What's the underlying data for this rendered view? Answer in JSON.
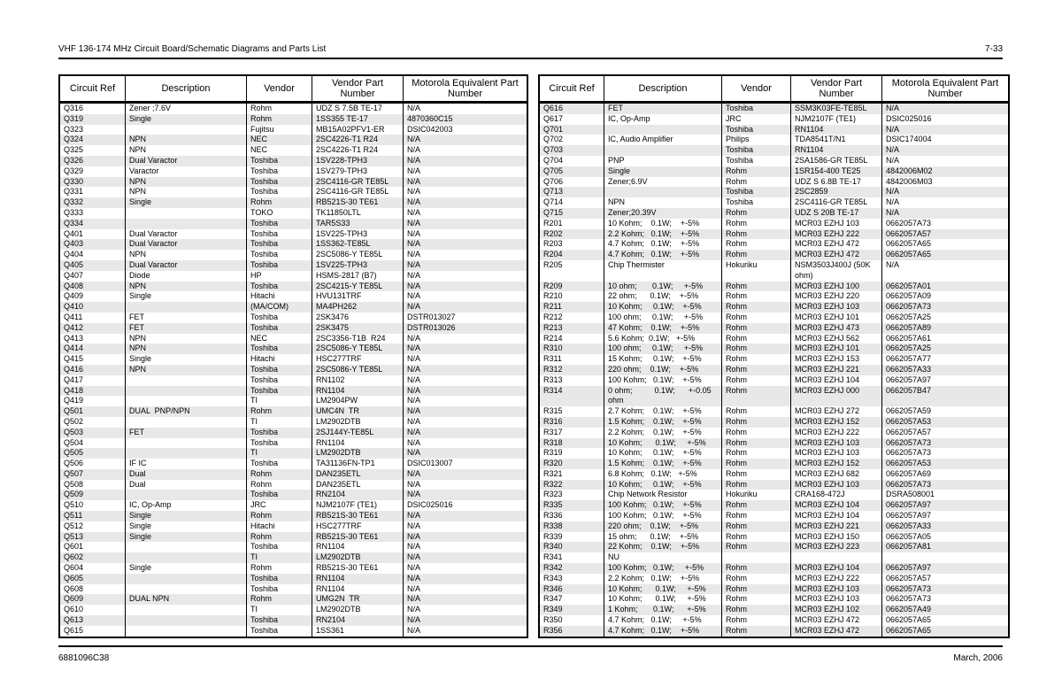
{
  "page": {
    "header_title": "VHF 136-174 MHz Circuit Board/Schematic Diagrams and Parts List",
    "header_page_number": "7-33",
    "footer_left": "6881096C38",
    "footer_right": "March, 2006"
  },
  "colors": {
    "stripe": "#e8e8e8",
    "border": "#000000",
    "text": "#000000"
  },
  "table_headers": [
    "Circuit Ref",
    "Description",
    "Vendor",
    "Vendor Part Number",
    "Motorola Equivalent Part Number"
  ],
  "left_table": {
    "shade_phase": 1,
    "tall_rows": [],
    "rows": [
      [
        "Q316",
        "Zener ;7.6V",
        "Rohm",
        "UDZ S 7.5B TE-17",
        "N/A"
      ],
      [
        "Q319",
        "Single",
        "Rohm",
        "1SS355 TE-17",
        "4870360C15"
      ],
      [
        "Q323",
        "",
        "Fujitsu",
        "MB15A02PFV1-ER",
        "DSIC042003"
      ],
      [
        "Q324",
        "NPN",
        "NEC",
        "2SC4226-T1 R24",
        "N/A"
      ],
      [
        "Q325",
        "NPN",
        "NEC",
        "2SC4226-T1 R24",
        "N/A"
      ],
      [
        "Q326",
        "Dual Varactor",
        "Toshiba",
        "1SV228-TPH3",
        "N/A"
      ],
      [
        "Q329",
        "Varactor",
        "Toshiba",
        "1SV279-TPH3",
        "N/A"
      ],
      [
        "Q330",
        "NPN",
        "Toshiba",
        "2SC4116-GR TE85L",
        "N/A"
      ],
      [
        "Q331",
        "NPN",
        "Toshiba",
        "2SC4116-GR TE85L",
        "N/A"
      ],
      [
        "Q332",
        "Single",
        "Rohm",
        "RB521S-30 TE61",
        "N/A"
      ],
      [
        "Q333",
        "",
        "TOKO",
        "TK11850LTL",
        "N/A"
      ],
      [
        "Q334",
        "",
        "Toshiba",
        "TAR5S33",
        "N/A"
      ],
      [
        "Q401",
        "Dual Varactor",
        "Toshiba",
        "1SV225-TPH3",
        "N/A"
      ],
      [
        "Q403",
        "Dual Varactor",
        "Toshiba",
        "1SS362-TE85L",
        "N/A"
      ],
      [
        "Q404",
        "NPN",
        "Toshiba",
        "2SC5086-Y TE85L",
        "N/A"
      ],
      [
        "Q405",
        "Dual Varactor",
        "Toshiba",
        "1SV225-TPH3",
        "N/A"
      ],
      [
        "Q407",
        "Diode",
        "HP",
        "HSMS-2817 (B7)",
        "N/A"
      ],
      [
        "Q408",
        "NPN",
        "Toshiba",
        "2SC4215-Y TE85L",
        "N/A"
      ],
      [
        "Q409",
        "Single",
        "Hitachi",
        "HVU131TRF",
        "N/A"
      ],
      [
        "Q410",
        "",
        "(MA/COM)",
        "MA4PH262",
        "N/A"
      ],
      [
        "Q411",
        "FET",
        "Toshiba",
        "2SK3476",
        "DSTR013027"
      ],
      [
        "Q412",
        "FET",
        "Toshiba",
        "2SK3475",
        "DSTR013026"
      ],
      [
        "Q413",
        "NPN",
        "NEC",
        "2SC3356-T1B  R24",
        "N/A"
      ],
      [
        "Q414",
        "NPN",
        "Toshiba",
        "2SC5086-Y TE85L",
        "N/A"
      ],
      [
        "Q415",
        "Single",
        "Hitachi",
        "HSC277TRF",
        "N/A"
      ],
      [
        "Q416",
        "NPN",
        "Toshiba",
        "2SC5086-Y TE85L",
        "N/A"
      ],
      [
        "Q417",
        "",
        "Toshiba",
        "RN1102",
        "N/A"
      ],
      [
        "Q418",
        "",
        "Toshiba",
        "RN1104",
        "N/A"
      ],
      [
        "Q419",
        "",
        "TI",
        "LM2904PW",
        "N/A"
      ],
      [
        "Q501",
        "DUAL  PNP/NPN",
        "Rohm",
        "UMC4N  TR",
        "N/A"
      ],
      [
        "Q502",
        "",
        "TI",
        "LM2902DTB",
        "N/A"
      ],
      [
        "Q503",
        "FET",
        "Toshiba",
        "2SJ144Y-TE85L",
        "N/A"
      ],
      [
        "Q504",
        "",
        "Toshiba",
        "RN1104",
        "N/A"
      ],
      [
        "Q505",
        "",
        "TI",
        "LM2902DTB",
        "N/A"
      ],
      [
        "Q506",
        "IF IC",
        "Toshiba",
        "TA31136FN-TP1",
        "DSIC013007"
      ],
      [
        "Q507",
        "Dual",
        "Rohm",
        "DAN235ETL",
        "N/A"
      ],
      [
        "Q508",
        "Dual",
        "Rohm",
        "DAN235ETL",
        "N/A"
      ],
      [
        "Q509",
        "",
        "Toshiba",
        "RN2104",
        "N/A"
      ],
      [
        "Q510",
        "IC, Op-Amp",
        "JRC",
        "NJM2107F (TE1)",
        "DSIC025016"
      ],
      [
        "Q511",
        "Single",
        "Rohm",
        "RB521S-30 TE61",
        "N/A"
      ],
      [
        "Q512",
        "Single",
        "Hitachi",
        "HSC277TRF",
        "N/A"
      ],
      [
        "Q513",
        "Single",
        "Rohm",
        "RB521S-30 TE61",
        "N/A"
      ],
      [
        "Q601",
        "",
        "Toshiba",
        "RN1104",
        "N/A"
      ],
      [
        "Q602",
        "",
        "TI",
        "LM2902DTB",
        "N/A"
      ],
      [
        "Q604",
        "Single",
        "Rohm",
        "RB521S-30 TE61",
        "N/A"
      ],
      [
        "Q605",
        "",
        "Toshiba",
        "RN1104",
        "N/A"
      ],
      [
        "Q608",
        "",
        "Toshiba",
        "RN1104",
        "N/A"
      ],
      [
        "Q609",
        "DUAL NPN",
        "Rohm",
        "UMG2N  TR",
        "N/A"
      ],
      [
        "Q610",
        "",
        "TI",
        "LM2902DTB",
        "N/A"
      ],
      [
        "Q613",
        "",
        "Toshiba",
        "RN2104",
        "N/A"
      ],
      [
        "Q615",
        "",
        "Toshiba",
        "1SS361",
        "N/A"
      ]
    ]
  },
  "right_table": {
    "shade_phase": 0,
    "tall_rows": [
      15,
      26
    ],
    "rows": [
      [
        "Q616",
        "FET",
        "Toshiba",
        "SSM3K03FE-TE85L",
        "N/A"
      ],
      [
        "Q617",
        "IC, Op-Amp",
        "JRC",
        "NJM2107F (TE1)",
        "DSIC025016"
      ],
      [
        "Q701",
        "",
        "Toshiba",
        "RN1104",
        "N/A"
      ],
      [
        "Q702",
        "IC, Audio Amplifier",
        "Philips",
        "TDA8541T/N1",
        "DSIC174004"
      ],
      [
        "Q703",
        "",
        "Toshiba",
        "RN1104",
        "N/A"
      ],
      [
        "Q704",
        "PNP",
        "Toshiba",
        "2SA1586-GR TE85L",
        "N/A"
      ],
      [
        "Q705",
        "Single",
        "Rohm",
        "1SR154-400 TE25",
        "4842006M02"
      ],
      [
        "Q706",
        "Zener;6.9V",
        "Rohm",
        "UDZ S 6.8B TE-17",
        "4842006M03"
      ],
      [
        "Q713",
        "",
        "Toshiba",
        "2SC2859",
        "N/A"
      ],
      [
        "Q714",
        "NPN",
        "Toshiba",
        "2SC4116-GR TE85L",
        "N/A"
      ],
      [
        "Q715",
        "Zener;20.39V",
        "Rohm",
        "UDZ S 20B TE-17",
        "N/A"
      ],
      [
        "R201",
        "10 Kohm;    0.1W;    +-5%",
        "Rohm",
        "MCR03 EZHJ 103",
        "0662057A73"
      ],
      [
        "R202",
        "2.2 Kohm;   0.1W;    +-5%",
        "Rohm",
        "MCR03 EZHJ 222",
        "0662057A57"
      ],
      [
        "R203",
        "4.7 Kohm;   0.1W;    +-5%",
        "Rohm",
        "MCR03 EZHJ 472",
        "0662057A65"
      ],
      [
        "R204",
        "4.7 Kohm;   0.1W;    +-5%",
        "Rohm",
        "MCR03 EZHJ 472",
        "0662057A65"
      ],
      [
        "R205",
        "Chip Thermister",
        "Hokuriku",
        "NSM3503J400J (50K ohm)",
        "N/A"
      ],
      [
        "R209",
        "10 ohm;       0.1W;     +-5%",
        "Rohm",
        "MCR03 EZHJ 100",
        "0662057A01"
      ],
      [
        "R210",
        "22 ohm;      0.1W;    +-5%",
        "Rohm",
        "MCR03 EZHJ 220",
        "0662057A09"
      ],
      [
        "R211",
        "10 Kohm;     0.1W;    +-5%",
        "Rohm",
        "MCR03 EZHJ 103",
        "0662057A73"
      ],
      [
        "R212",
        "100 ohm;     0.1W;     +-5%",
        "Rohm",
        "MCR03 EZHJ 101",
        "0662057A25"
      ],
      [
        "R213",
        "47 Kohm;    0.1W;    +-5%",
        "Rohm",
        "MCR03 EZHJ 473",
        "0662057A89"
      ],
      [
        "R214",
        "5.6 Kohm;  0.1W;   +-5%",
        "Rohm",
        "MCR03 EZHJ 562",
        "0662057A61"
      ],
      [
        "R310",
        "100 ohm;     0.1W;     +-5%",
        "Rohm",
        "MCR03 EZHJ 101",
        "0662057A25"
      ],
      [
        "R311",
        "15 Kohm;     0.1W;    +-5%",
        "Rohm",
        "MCR03 EZHJ 153",
        "0662057A77"
      ],
      [
        "R312",
        "220 ohm;    0.1W;    +-5%",
        "Rohm",
        "MCR03 EZHJ 221",
        "0662057A33"
      ],
      [
        "R313",
        "100 Kohm;   0.1W;    +-5%",
        "Rohm",
        "MCR03 EZHJ 104",
        "0662057A97"
      ],
      [
        "R314",
        "0 ohm;          0.1W;      +-0.05 ohm",
        "Rohm",
        "MCR03 EZHJ 000",
        "0662057B47"
      ],
      [
        "R315",
        "2.7 Kohm;    0.1W;    +-5%",
        "Rohm",
        "MCR03 EZHJ 272",
        "0662057A59"
      ],
      [
        "R316",
        "1.5 Kohm;    0.1W;    +-5%",
        "Rohm",
        "MCR03 EZHJ 152",
        "0662057A53"
      ],
      [
        "R317",
        "2.2 Kohm;    0.1W;    +-5%",
        "Rohm",
        "MCR03 EZHJ 222",
        "0662057A57"
      ],
      [
        "R318",
        "10 Kohm;      0.1W;     +-5%",
        "Rohm",
        "MCR03 EZHJ 103",
        "0662057A73"
      ],
      [
        "R319",
        "10 Kohm;     0.1W;    +-5%",
        "Rohm",
        "MCR03 EZHJ 103",
        "0662057A73"
      ],
      [
        "R320",
        "1.5 Kohm;    0.1W;    +-5%",
        "Rohm",
        "MCR03 EZHJ 152",
        "0662057A53"
      ],
      [
        "R321",
        "6.8 Kohm;   0.1W;   +-5%",
        "Rohm",
        "MCR03 EZHJ 682",
        "0662057A69"
      ],
      [
        "R322",
        "10 Kohm;     0.1W;    +-5%",
        "Rohm",
        "MCR03 EZHJ 103",
        "0662057A73"
      ],
      [
        "R323",
        "Chip Network Resistor",
        "Hokuriku",
        "CRA168-472J",
        "DSRA508001"
      ],
      [
        "R335",
        "100 Kohm;   0.1W;    +-5%",
        "Rohm",
        "MCR03 EZHJ 104",
        "0662057A97"
      ],
      [
        "R336",
        "100 Kohm;   0.1W;    +-5%",
        "Rohm",
        "MCR03 EZHJ 104",
        "0662057A97"
      ],
      [
        "R338",
        "220 ohm;    0.1W;    +-5%",
        "Rohm",
        "MCR03 EZHJ 221",
        "0662057A33"
      ],
      [
        "R339",
        "15 ohm;      0.1W;    +-5%",
        "Rohm",
        "MCR03 EZHJ 150",
        "0662057A05"
      ],
      [
        "R340",
        "22 Kohm;    0.1W;    +-5%",
        "Rohm",
        "MCR03 EZHJ 223",
        "0662057A81"
      ],
      [
        "R341",
        "NU",
        "",
        "",
        ""
      ],
      [
        "R342",
        "100 Kohm;   0.1W;     +-5%",
        "Rohm",
        "MCR03 EZHJ 104",
        "0662057A97"
      ],
      [
        "R343",
        "2.2 Kohm;   0.1W;    +-5%",
        "Rohm",
        "MCR03 EZHJ 222",
        "0662057A57"
      ],
      [
        "R346",
        "10 Kohm;      0.1W;     +-5%",
        "Rohm",
        "MCR03 EZHJ 103",
        "0662057A73"
      ],
      [
        "R347",
        "10 Kohm;      0.1W;     +-5%",
        "Rohm",
        "MCR03 EZHJ 103",
        "0662057A73"
      ],
      [
        "R349",
        "1 Kohm;       0.1W;      +-5%",
        "Rohm",
        "MCR03 EZHJ 102",
        "0662057A49"
      ],
      [
        "R350",
        "4.7 Kohm;   0.1W;     +-5%",
        "Rohm",
        "MCR03 EZHJ 472",
        "0662057A65"
      ],
      [
        "R356",
        "4.7 Kohm;   0.1W;    +-5%",
        "Rohm",
        "MCR03 EZHJ 472",
        "0662057A65"
      ]
    ]
  }
}
